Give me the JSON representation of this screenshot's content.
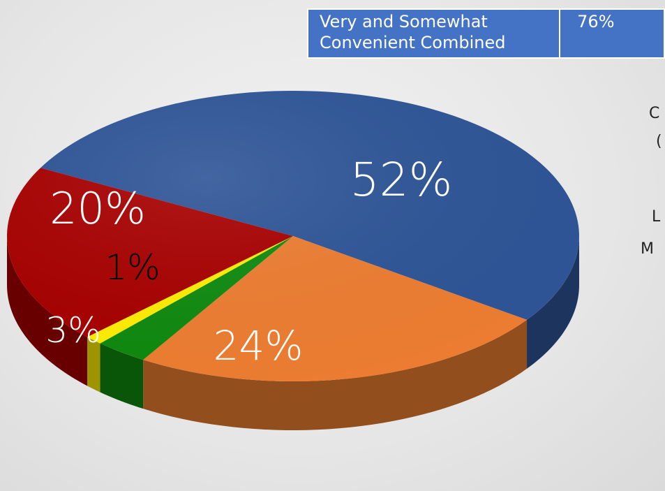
{
  "summary_table": {
    "label_line1": "Very and Somewhat",
    "label_line2": "Convenient Combined",
    "value": "76%"
  },
  "right_fragments": [
    "C",
    "(",
    "L",
    "M"
  ],
  "colors": {
    "blue": "#2e5597",
    "orange": "#ed7d31",
    "green": "#0f8a0f",
    "yellow": "#ffee00",
    "red": "#a80000",
    "table_fill": "#4472c4"
  },
  "chart_data": {
    "type": "pie",
    "style": "3d",
    "title": "",
    "slices": [
      {
        "label": "52%",
        "value": 52,
        "color": "#2e5597",
        "label_color": "#ffffff"
      },
      {
        "label": "24%",
        "value": 24,
        "color": "#ed7d31",
        "label_color": "#ffffff"
      },
      {
        "label": "3%",
        "value": 3,
        "color": "#0f8a0f",
        "label_color": "#ffffff"
      },
      {
        "label": "1%",
        "value": 1,
        "color": "#ffee00",
        "label_color": "#000000"
      },
      {
        "label": "20%",
        "value": 20,
        "color": "#a80000",
        "label_color": "#ffffff"
      }
    ]
  }
}
